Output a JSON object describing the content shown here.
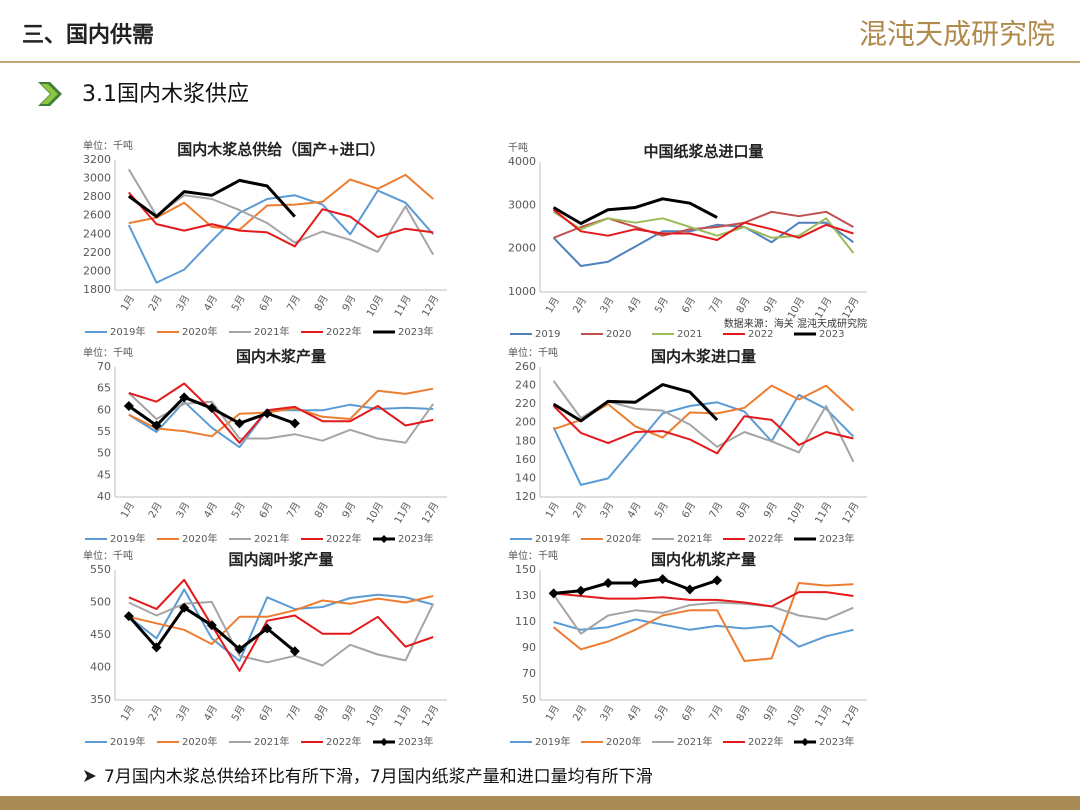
{
  "header": {
    "section": "三、国内供需",
    "logo": "混沌天成研究院",
    "subtitle": "3.1国内木浆供应"
  },
  "note": "7月国内木浆总供给环比有所下滑，7月国内纸浆产量和进口量均有所下滑",
  "chart_data": [
    {
      "type": "line",
      "title": "国内木浆总供给（国产+进口）",
      "unit": "单位：千吨",
      "categories": [
        "1月",
        "2月",
        "3月",
        "4月",
        "5月",
        "6月",
        "7月",
        "8月",
        "9月",
        "10月",
        "11月",
        "12月"
      ],
      "ylim": [
        1800,
        3200
      ],
      "yticks": [
        1800,
        2000,
        2200,
        2400,
        2600,
        2800,
        3000,
        3200
      ],
      "grid": false,
      "series": [
        {
          "name": "2019年",
          "color": "#5b9bd5",
          "values": [
            2500,
            1880,
            2020,
            2330,
            2630,
            2780,
            2820,
            2720,
            2400,
            2870,
            2740,
            2400
          ]
        },
        {
          "name": "2020年",
          "color": "#ed7d31",
          "values": [
            2520,
            2580,
            2740,
            2480,
            2450,
            2710,
            2720,
            2750,
            2990,
            2890,
            3040,
            2780
          ]
        },
        {
          "name": "2021年",
          "color": "#a5a5a5",
          "values": [
            3100,
            2600,
            2820,
            2780,
            2660,
            2520,
            2310,
            2430,
            2340,
            2210,
            2700,
            2180
          ]
        },
        {
          "name": "2022年",
          "color": "#e3191b",
          "values": [
            2850,
            2510,
            2440,
            2510,
            2440,
            2420,
            2270,
            2670,
            2590,
            2370,
            2460,
            2420
          ]
        },
        {
          "name": "2023年",
          "color": "#000000",
          "values": [
            2810,
            2590,
            2860,
            2820,
            2980,
            2920,
            2590,
            null,
            null,
            null,
            null,
            null
          ]
        }
      ]
    },
    {
      "type": "line",
      "title": "中国纸浆总进口量",
      "unit": "千吨",
      "source": "数据来源：海关 混沌天成研究院",
      "categories": [
        "1月",
        "2月",
        "3月",
        "4月",
        "5月",
        "6月",
        "7月",
        "8月",
        "9月",
        "10月",
        "11月",
        "12月"
      ],
      "ylim": [
        1000,
        4000
      ],
      "yticks": [
        1000,
        2000,
        3000,
        4000
      ],
      "grid": false,
      "series": [
        {
          "name": "2019",
          "color": "#4f81bd",
          "values": [
            2250,
            1600,
            1700,
            2050,
            2400,
            2400,
            2550,
            2500,
            2150,
            2600,
            2600,
            2150
          ]
        },
        {
          "name": "2020",
          "color": "#c0504d",
          "values": [
            2250,
            2500,
            2700,
            2500,
            2300,
            2450,
            2500,
            2600,
            2850,
            2750,
            2850,
            2500
          ]
        },
        {
          "name": "2021",
          "color": "#9bbb59",
          "values": [
            2850,
            2450,
            2700,
            2600,
            2700,
            2500,
            2300,
            2500,
            2250,
            2300,
            2700,
            1900
          ]
        },
        {
          "name": "2022",
          "color": "#e3191b",
          "values": [
            2900,
            2400,
            2300,
            2450,
            2350,
            2350,
            2200,
            2600,
            2450,
            2250,
            2550,
            2350
          ]
        },
        {
          "name": "2023",
          "color": "#000000",
          "values": [
            2950,
            2580,
            2900,
            2950,
            3150,
            3050,
            2720,
            null,
            null,
            null,
            null,
            null
          ]
        }
      ]
    },
    {
      "type": "line",
      "title": "国内木浆产量",
      "unit": "单位：千吨",
      "categories": [
        "1月",
        "2月",
        "3月",
        "4月",
        "5月",
        "6月",
        "7月",
        "8月",
        "9月",
        "10月",
        "11月",
        "12月"
      ],
      "ylim": [
        40,
        70
      ],
      "yticks": [
        40,
        45,
        50,
        55,
        60,
        65,
        70
      ],
      "grid": false,
      "series": [
        {
          "name": "2019年",
          "color": "#5b9bd5",
          "values": [
            59,
            55,
            62,
            56,
            51.5,
            60,
            60,
            60,
            61.3,
            60.3,
            60.6,
            60.3
          ]
        },
        {
          "name": "2020年",
          "color": "#ed7d31",
          "values": [
            59,
            55.8,
            55.2,
            54,
            59.2,
            59.5,
            60.5,
            58.5,
            58,
            64.5,
            63.8,
            65
          ]
        },
        {
          "name": "2021年",
          "color": "#a5a5a5",
          "values": [
            64,
            58,
            61.5,
            62,
            53.5,
            53.5,
            54.5,
            53,
            55.5,
            53.5,
            52.5,
            61.5
          ]
        },
        {
          "name": "2022年",
          "color": "#e3191b",
          "values": [
            64,
            62,
            66.2,
            60,
            52.5,
            60,
            60.8,
            57.5,
            57.5,
            61,
            56.5,
            57.8
          ]
        },
        {
          "name": "2023年",
          "color": "#000000",
          "marker": "diamond",
          "values": [
            61,
            56.5,
            63,
            60.5,
            57,
            59.3,
            57,
            null,
            null,
            null,
            null,
            null
          ]
        }
      ]
    },
    {
      "type": "line",
      "title": "国内木浆进口量",
      "unit": "单位：千吨",
      "categories": [
        "1月",
        "2月",
        "3月",
        "4月",
        "5月",
        "6月",
        "7月",
        "8月",
        "9月",
        "10月",
        "11月",
        "12月"
      ],
      "ylim": [
        120,
        260
      ],
      "yticks": [
        120,
        140,
        160,
        180,
        200,
        220,
        240,
        260
      ],
      "grid": false,
      "series": [
        {
          "name": "2019年",
          "color": "#5b9bd5",
          "values": [
            195,
            133,
            140,
            175,
            210,
            218,
            222,
            212,
            180,
            230,
            215,
            185
          ]
        },
        {
          "name": "2020年",
          "color": "#ed7d31",
          "values": [
            193,
            203,
            220,
            196,
            184,
            211,
            210,
            216,
            240,
            225,
            240,
            213
          ]
        },
        {
          "name": "2021年",
          "color": "#a5a5a5",
          "values": [
            245,
            205,
            223,
            215,
            213,
            198,
            174,
            190,
            180,
            168,
            218,
            158
          ]
        },
        {
          "name": "2022年",
          "color": "#e3191b",
          "values": [
            218,
            189,
            178,
            190,
            191,
            182,
            167,
            207,
            203,
            176,
            190,
            183
          ]
        },
        {
          "name": "2023年",
          "color": "#000000",
          "values": [
            220,
            202,
            223,
            222,
            241,
            233,
            203,
            null,
            null,
            null,
            null,
            null
          ]
        }
      ]
    },
    {
      "type": "line",
      "title": "国内阔叶浆产量",
      "unit": "单位：千吨",
      "categories": [
        "1月",
        "2月",
        "3月",
        "4月",
        "5月",
        "6月",
        "7月",
        "8月",
        "9月",
        "10月",
        "11月",
        "12月"
      ],
      "ylim": [
        350,
        550
      ],
      "yticks": [
        350,
        400,
        450,
        500,
        550
      ],
      "grid": false,
      "series": [
        {
          "name": "2019年",
          "color": "#5b9bd5",
          "values": [
            478,
            445,
            520,
            445,
            410,
            508,
            490,
            493,
            507,
            512,
            508,
            497
          ]
        },
        {
          "name": "2020年",
          "color": "#ed7d31",
          "values": [
            478,
            468,
            458,
            436,
            478,
            478,
            488,
            503,
            498,
            506,
            500,
            510
          ]
        },
        {
          "name": "2021年",
          "color": "#a5a5a5",
          "values": [
            500,
            480,
            498,
            501,
            418,
            408,
            418,
            403,
            435,
            420,
            411,
            498
          ]
        },
        {
          "name": "2022年",
          "color": "#e3191b",
          "values": [
            508,
            490,
            535,
            465,
            395,
            472,
            480,
            452,
            452,
            478,
            432,
            447
          ]
        },
        {
          "name": "2023年",
          "color": "#000000",
          "marker": "diamond",
          "values": [
            479,
            431,
            492,
            465,
            428,
            460,
            425,
            null,
            null,
            null,
            null,
            null
          ]
        }
      ]
    },
    {
      "type": "line",
      "title": "国内化机浆产量",
      "unit": "单位：千吨",
      "categories": [
        "1月",
        "2月",
        "3月",
        "4月",
        "5月",
        "6月",
        "7月",
        "8月",
        "9月",
        "10月",
        "11月",
        "12月"
      ],
      "ylim": [
        50,
        150
      ],
      "yticks": [
        50,
        70,
        90,
        110,
        130,
        150
      ],
      "grid": false,
      "series": [
        {
          "name": "2019年",
          "color": "#5b9bd5",
          "values": [
            110,
            104,
            106,
            112,
            108,
            104,
            107,
            105,
            107,
            91,
            99,
            104
          ]
        },
        {
          "name": "2020年",
          "color": "#ed7d31",
          "values": [
            106,
            89,
            95,
            104,
            115,
            119,
            119,
            80,
            82,
            140,
            138,
            139
          ]
        },
        {
          "name": "2021年",
          "color": "#a5a5a5",
          "values": [
            131,
            101,
            115,
            119,
            117,
            123,
            125,
            124,
            122,
            115,
            112,
            121
          ]
        },
        {
          "name": "2022年",
          "color": "#e3191b",
          "values": [
            132,
            130,
            128,
            128,
            129,
            127,
            127,
            125,
            122,
            133,
            133,
            130
          ]
        },
        {
          "name": "2023年",
          "color": "#000000",
          "marker": "diamond",
          "values": [
            132,
            134,
            140,
            140,
            143,
            135,
            142,
            null,
            null,
            null,
            null,
            null
          ]
        }
      ]
    }
  ]
}
